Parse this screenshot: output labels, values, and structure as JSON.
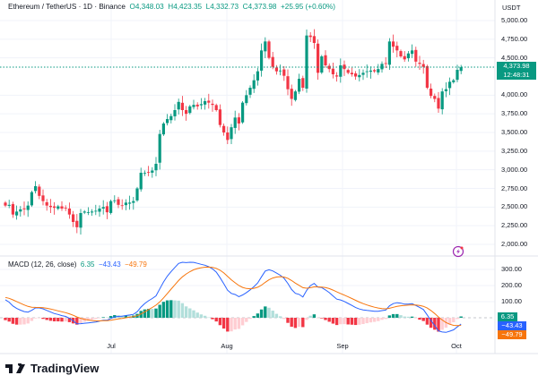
{
  "header": {
    "symbol": "Ethereum / TetherUS · 1D · Binance",
    "open": "O4,348.03",
    "high": "H4,423.35",
    "low": "L4,332.73",
    "close": "C4,373.98",
    "change": "+25.95 (+0.60%)"
  },
  "price_axis": {
    "unit": "USDT",
    "ticks": [
      "5,000.00",
      "4,750.00",
      "4,500.00",
      "4,000.00",
      "3,750.00",
      "3,500.00",
      "3,250.00",
      "3,000.00",
      "2,750.00",
      "2,500.00",
      "2,250.00",
      "2,000.00"
    ],
    "last_price": "4,373.98",
    "countdown": "12:48:31"
  },
  "macd": {
    "label": "MACD (12, 26, close)",
    "histogram": "6.35",
    "macd": "−43.43",
    "signal": "−49.79",
    "ticks": [
      "300.00",
      "200.00",
      "100.00"
    ]
  },
  "time_axis": [
    "Jul",
    "Aug",
    "Sep",
    "Oct"
  ],
  "brand": "TradingView",
  "colors": {
    "up": "#089981",
    "down": "#f23645",
    "macd": "#2962ff",
    "signal": "#f7750c",
    "hist_up_light": "#b2dfdb",
    "hist_down_light": "#ffcdd2"
  },
  "chart_data": {
    "type": "candlestick",
    "ylim": [
      2000,
      5000
    ],
    "closes": [
      2520,
      2530,
      2400,
      2440,
      2470,
      2470,
      2520,
      2700,
      2780,
      2650,
      2580,
      2520,
      2500,
      2490,
      2510,
      2480,
      2490,
      2400,
      2300,
      2230,
      2420,
      2440,
      2430,
      2440,
      2450,
      2480,
      2500,
      2430,
      2580,
      2590,
      2530,
      2520,
      2560,
      2560,
      2580,
      2750,
      2960,
      2960,
      2970,
      2990,
      3080,
      3480,
      3620,
      3680,
      3720,
      3800,
      3910,
      3800,
      3750,
      3850,
      3870,
      3850,
      3880,
      3920,
      3900,
      3870,
      3800,
      3600,
      3500,
      3400,
      3570,
      3700,
      3620,
      3900,
      4000,
      4100,
      4200,
      4320,
      4600,
      4720,
      4500,
      4380,
      4320,
      4330,
      4260,
      4080,
      3950,
      4050,
      4220,
      4100,
      4800,
      4780,
      4700,
      4300,
      4520,
      4400,
      4350,
      4280,
      4250,
      4400,
      4350,
      4300,
      4280,
      4250,
      4270,
      4300,
      4320,
      4330,
      4320,
      4350,
      4420,
      4420,
      4720,
      4650,
      4600,
      4520,
      4480,
      4560,
      4600,
      4450,
      4420,
      4380,
      4100,
      3990,
      3950,
      3820,
      4050,
      4080,
      4180,
      4200,
      4340,
      4374
    ],
    "macd_last": {
      "histogram": 6.35,
      "macd": -43.43,
      "signal": -49.79
    }
  }
}
